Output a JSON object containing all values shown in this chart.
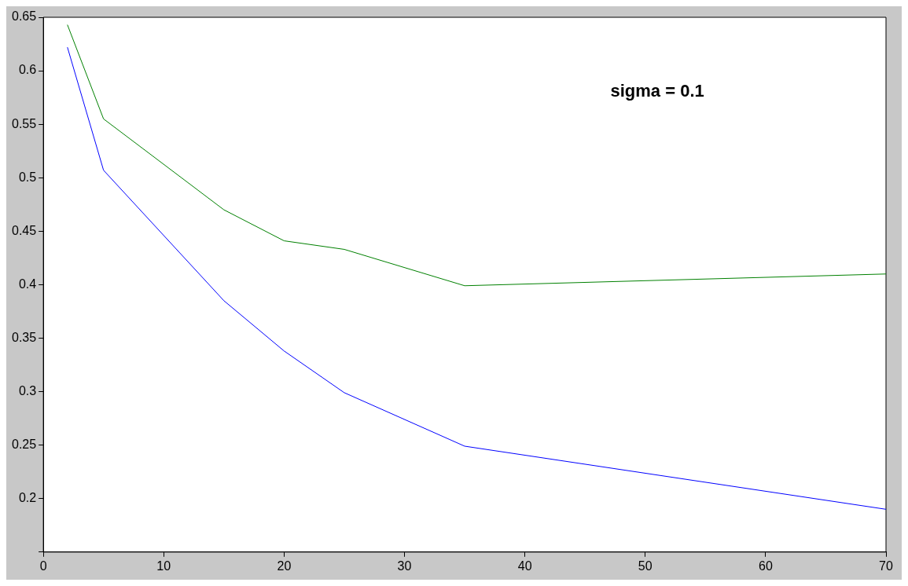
{
  "chart_data": {
    "type": "line",
    "x": [
      2,
      5,
      15,
      20,
      25,
      35,
      70
    ],
    "series": [
      {
        "color": "#008000",
        "values": [
          0.643,
          0.555,
          0.47,
          0.441,
          0.433,
          0.399,
          0.41
        ]
      },
      {
        "color": "#0000ff",
        "values": [
          0.622,
          0.507,
          0.385,
          0.338,
          0.299,
          0.249,
          0.19
        ]
      }
    ],
    "xlim": [
      0,
      70
    ],
    "xticks": [
      0,
      10,
      20,
      30,
      40,
      50,
      60,
      70
    ],
    "ylim": [
      0.15,
      0.65
    ],
    "yticks": [
      {
        "value": 0.15,
        "label": null
      },
      0.2,
      0.25,
      0.3,
      0.35,
      0.4,
      0.45,
      0.5,
      0.55,
      0.6,
      0.65
    ],
    "annotations": [
      "sigma = 0.1"
    ],
    "legend": false,
    "marker": "none"
  }
}
